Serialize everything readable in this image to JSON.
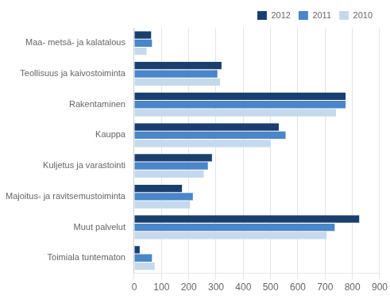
{
  "chart_data": {
    "type": "bar",
    "orientation": "horizontal",
    "categories": [
      "Maa- metsä- ja kalatalous",
      "Teollisuus ja kaivostoiminta",
      "Rakentaminen",
      "Kauppa",
      "Kuljetus ja varastointi",
      "Majoitus- ja ravitsemustoiminta",
      "Muut palvelut",
      "Toimiala tuntematon"
    ],
    "series": [
      {
        "name": "2012",
        "color": "#1a3f6f",
        "values": [
          62,
          320,
          775,
          530,
          285,
          175,
          825,
          20
        ]
      },
      {
        "name": "2011",
        "color": "#4a86c8",
        "values": [
          65,
          305,
          775,
          555,
          270,
          215,
          735,
          65
        ]
      },
      {
        "name": "2010",
        "color": "#c5d9ed",
        "values": [
          45,
          315,
          740,
          500,
          255,
          205,
          705,
          75
        ]
      }
    ],
    "xlim": [
      0,
      900
    ],
    "xticks": [
      0,
      100,
      200,
      300,
      400,
      500,
      600,
      700,
      800,
      900
    ],
    "grid": "x",
    "legend": "upper right"
  }
}
